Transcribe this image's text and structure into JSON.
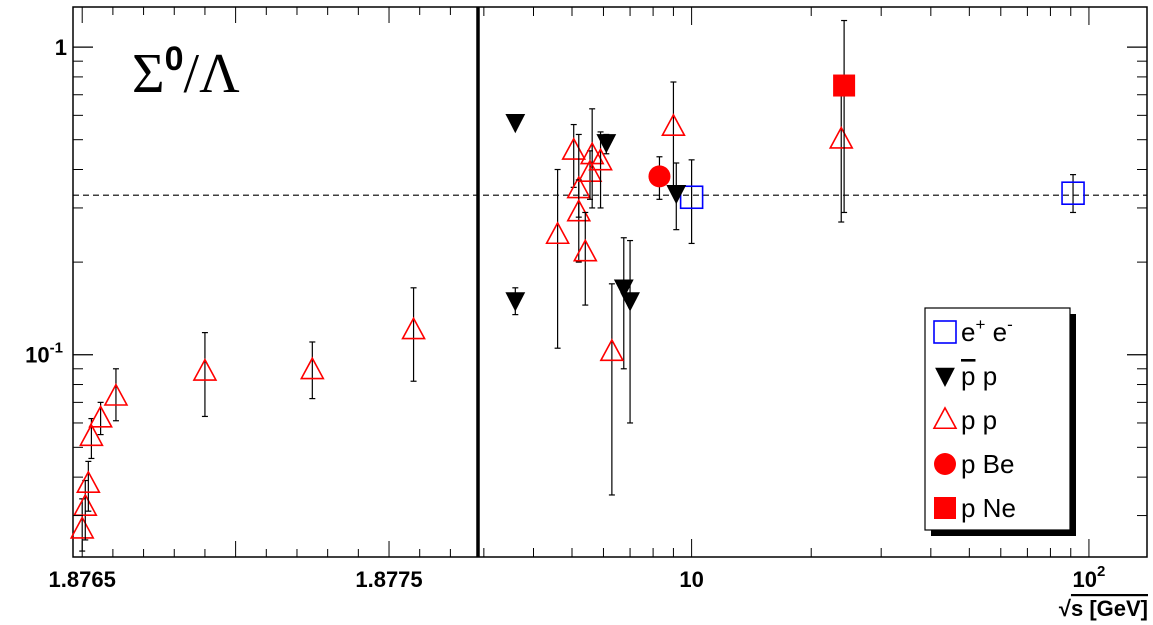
{
  "chart_data": {
    "type": "scatter",
    "title": "Σ0/Λ",
    "title_parts": {
      "sigma": "Σ",
      "sup": "0",
      "rest": "/Λ"
    },
    "xlabel": "√s [GeV]",
    "xlabel_parts": {
      "root": "√",
      "rest": "s [GeV]"
    },
    "ylabel": "",
    "y_scale": "log",
    "ylim": [
      0.022,
      1.35
    ],
    "grid": false,
    "reference_line": {
      "y": 0.33,
      "style": "dashed"
    },
    "left_panel": {
      "x_scale": "linear",
      "xlim": [
        1.87647,
        1.87779
      ],
      "ticks": [
        {
          "value": 1.8765,
          "label": "1.8765"
        },
        {
          "value": 1.8775,
          "label": "1.8775"
        }
      ]
    },
    "right_panel": {
      "x_scale": "log",
      "xlim": [
        2.9,
        140
      ],
      "ticks": [
        {
          "value": 10,
          "label": "10"
        },
        {
          "value": 100,
          "label": "10",
          "sup": "2"
        }
      ]
    },
    "legend": {
      "position": "bottom-right",
      "entries": [
        {
          "series": "ee",
          "label": "e",
          "sup1": "+",
          "label2": " e",
          "sup2": "-"
        },
        {
          "series": "pbarp",
          "label": "p p",
          "overline_first": true
        },
        {
          "series": "pp",
          "label": "p p"
        },
        {
          "series": "pBe",
          "label": "p Be"
        },
        {
          "series": "pNe",
          "label": "p Ne"
        }
      ]
    },
    "series": [
      {
        "name": "e+ e-",
        "key": "ee",
        "marker": "open-square",
        "color": "#0000ff",
        "points": [
          {
            "panel": "right",
            "x": 10.0,
            "y": 0.325,
            "ylo": 0.23,
            "yhi": 0.43
          },
          {
            "panel": "right",
            "x": 91.2,
            "y": 0.335,
            "ylo": 0.29,
            "yhi": 0.385
          }
        ]
      },
      {
        "name": "pbar p",
        "key": "pbarp",
        "marker": "filled-triangle-down",
        "color": "#000000",
        "points": [
          {
            "panel": "right",
            "x": 3.6,
            "y": 0.57,
            "ylo": 0.57,
            "yhi": 0.57
          },
          {
            "panel": "right",
            "x": 3.6,
            "y": 0.15,
            "ylo": 0.135,
            "yhi": 0.165
          },
          {
            "panel": "right",
            "x": 6.1,
            "y": 0.49,
            "ylo": 0.45,
            "yhi": 0.52
          },
          {
            "panel": "right",
            "x": 6.75,
            "y": 0.165,
            "ylo": 0.09,
            "yhi": 0.24
          },
          {
            "panel": "right",
            "x": 7.0,
            "y": 0.15,
            "ylo": 0.06,
            "yhi": 0.235
          },
          {
            "panel": "right",
            "x": 9.15,
            "y": 0.335,
            "ylo": 0.255,
            "yhi": 0.42
          }
        ]
      },
      {
        "name": "p p",
        "key": "pp",
        "marker": "open-triangle-up",
        "color": "#ff0000",
        "points": [
          {
            "panel": "left",
            "x": 1.8765,
            "y": 0.027,
            "ylo": 0.023,
            "yhi": 0.034
          },
          {
            "panel": "left",
            "x": 1.87651,
            "y": 0.032,
            "ylo": 0.025,
            "yhi": 0.039
          },
          {
            "panel": "left",
            "x": 1.87652,
            "y": 0.038,
            "ylo": 0.031,
            "yhi": 0.045
          },
          {
            "panel": "left",
            "x": 1.87653,
            "y": 0.054,
            "ylo": 0.046,
            "yhi": 0.062
          },
          {
            "panel": "left",
            "x": 1.87656,
            "y": 0.062,
            "ylo": 0.055,
            "yhi": 0.07
          },
          {
            "panel": "left",
            "x": 1.87661,
            "y": 0.073,
            "ylo": 0.061,
            "yhi": 0.09
          },
          {
            "panel": "left",
            "x": 1.8769,
            "y": 0.088,
            "ylo": 0.063,
            "yhi": 0.118
          },
          {
            "panel": "left",
            "x": 1.87725,
            "y": 0.089,
            "ylo": 0.072,
            "yhi": 0.11
          },
          {
            "panel": "left",
            "x": 1.87758,
            "y": 0.12,
            "ylo": 0.082,
            "yhi": 0.165
          },
          {
            "panel": "right",
            "x": 4.6,
            "y": 0.245,
            "ylo": 0.105,
            "yhi": 0.4
          },
          {
            "panel": "right",
            "x": 5.05,
            "y": 0.46,
            "ylo": 0.35,
            "yhi": 0.56
          },
          {
            "panel": "right",
            "x": 5.2,
            "y": 0.345,
            "ylo": 0.28,
            "yhi": 0.52
          },
          {
            "panel": "right",
            "x": 5.2,
            "y": 0.29,
            "ylo": 0.2,
            "yhi": 0.37
          },
          {
            "panel": "right",
            "x": 5.4,
            "y": 0.215,
            "ylo": 0.145,
            "yhi": 0.29
          },
          {
            "panel": "right",
            "x": 5.55,
            "y": 0.39,
            "ylo": 0.32,
            "yhi": 0.46
          },
          {
            "panel": "right",
            "x": 5.62,
            "y": 0.445,
            "ylo": 0.3,
            "yhi": 0.63
          },
          {
            "panel": "right",
            "x": 5.9,
            "y": 0.425,
            "ylo": 0.3,
            "yhi": 0.53
          },
          {
            "panel": "right",
            "x": 6.3,
            "y": 0.102,
            "ylo": 0.035,
            "yhi": 0.17
          },
          {
            "panel": "right",
            "x": 9.0,
            "y": 0.55,
            "ylo": 0.34,
            "yhi": 0.77
          },
          {
            "panel": "right",
            "x": 23.8,
            "y": 0.5,
            "ylo": 0.27,
            "yhi": 0.73
          }
        ]
      },
      {
        "name": "p Be",
        "key": "pBe",
        "marker": "filled-circle",
        "color": "#ff0000",
        "points": [
          {
            "panel": "right",
            "x": 8.3,
            "y": 0.38,
            "ylo": 0.32,
            "yhi": 0.44
          }
        ]
      },
      {
        "name": "p Ne",
        "key": "pNe",
        "marker": "filled-square",
        "color": "#ff0000",
        "points": [
          {
            "panel": "right",
            "x": 24.2,
            "y": 0.75,
            "ylo": 0.29,
            "yhi": 1.22
          }
        ]
      }
    ]
  }
}
